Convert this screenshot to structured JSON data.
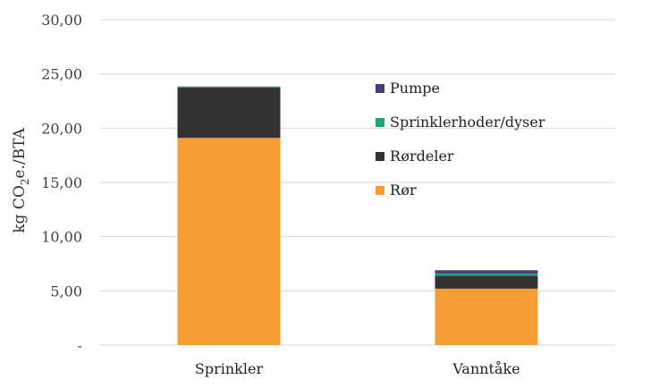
{
  "chart_data": {
    "type": "bar",
    "stacked": true,
    "categories": [
      "Sprinkler",
      "Vanntåke"
    ],
    "series": [
      {
        "name": "Rør",
        "color": "#F59D31",
        "values": [
          19.1,
          5.2
        ]
      },
      {
        "name": "Rørdeler",
        "color": "#333333",
        "values": [
          4.65,
          1.2
        ]
      },
      {
        "name": "Sprinklerhoder/dyser",
        "color": "#1BA672",
        "values": [
          0.08,
          0.2
        ]
      },
      {
        "name": "Pumpe",
        "color": "#4B3A78",
        "values": [
          0.02,
          0.3
        ]
      }
    ],
    "ylabel_parts": {
      "pre": "kg CO",
      "sub": "2",
      "post": "e./BTA"
    },
    "ylim": [
      0,
      30
    ],
    "yticks": [
      0,
      5,
      10,
      15,
      20,
      25,
      30
    ],
    "ytick_labels": [
      "-",
      "5,00",
      "10,00",
      "15,00",
      "20,00",
      "25,00",
      "30,00"
    ],
    "grid": true,
    "legend_position": "right",
    "legend_order": [
      "Pumpe",
      "Sprinklerhoder/dyser",
      "Rørdeler",
      "Rør"
    ],
    "gridline_color": "#D9D9D9"
  }
}
